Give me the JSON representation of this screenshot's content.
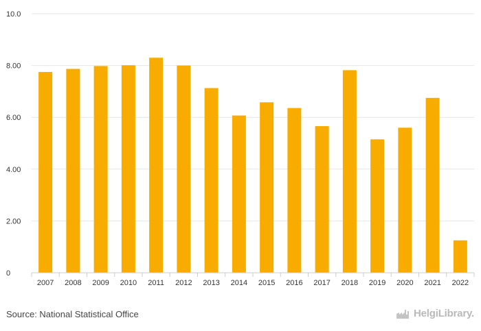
{
  "chart_data": {
    "type": "bar",
    "categories": [
      "2007",
      "2008",
      "2009",
      "2010",
      "2011",
      "2012",
      "2013",
      "2014",
      "2015",
      "2016",
      "2017",
      "2018",
      "2019",
      "2020",
      "2021",
      "2022"
    ],
    "values": [
      7.75,
      7.87,
      7.98,
      8.01,
      8.3,
      8.0,
      7.13,
      6.07,
      6.58,
      6.36,
      5.66,
      7.82,
      5.15,
      5.6,
      6.75,
      1.25
    ],
    "yticks": [
      "0",
      "2.00",
      "4.00",
      "6.00",
      "8.00",
      "10.0"
    ],
    "ylim": [
      0,
      10
    ],
    "grid": true,
    "bar_color": "#f8ac00",
    "title": "",
    "xlabel": "",
    "ylabel": ""
  },
  "footer": {
    "source": "Source: National Statistical Office",
    "brand": "HelgiLibrary."
  },
  "icons": {
    "brand_logo": "factory-icon"
  }
}
